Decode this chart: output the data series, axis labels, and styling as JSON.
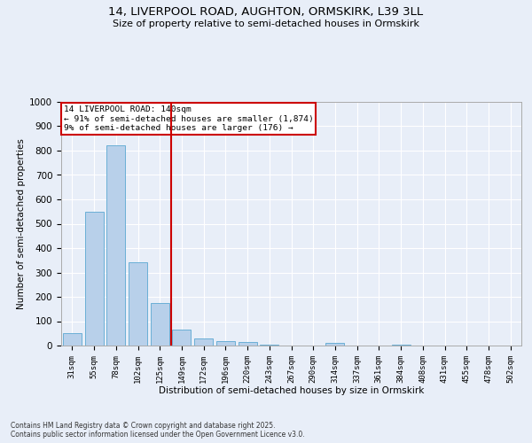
{
  "title1": "14, LIVERPOOL ROAD, AUGHTON, ORMSKIRK, L39 3LL",
  "title2": "Size of property relative to semi-detached houses in Ormskirk",
  "xlabel": "Distribution of semi-detached houses by size in Ormskirk",
  "ylabel": "Number of semi-detached properties",
  "categories": [
    "31sqm",
    "55sqm",
    "78sqm",
    "102sqm",
    "125sqm",
    "149sqm",
    "172sqm",
    "196sqm",
    "220sqm",
    "243sqm",
    "267sqm",
    "290sqm",
    "314sqm",
    "337sqm",
    "361sqm",
    "384sqm",
    "408sqm",
    "431sqm",
    "455sqm",
    "478sqm",
    "502sqm"
  ],
  "values": [
    52,
    550,
    820,
    343,
    175,
    65,
    30,
    17,
    13,
    5,
    0,
    0,
    10,
    0,
    0,
    5,
    0,
    0,
    0,
    0,
    0
  ],
  "bar_color": "#b8d0ea",
  "bar_edge_color": "#6aafd6",
  "vline_x_idx": 5,
  "vline_color": "#cc0000",
  "annotation_title": "14 LIVERPOOL ROAD: 140sqm",
  "annotation_line1": "← 91% of semi-detached houses are smaller (1,874)",
  "annotation_line2": "9% of semi-detached houses are larger (176) →",
  "annotation_box_color": "#cc0000",
  "ylim": [
    0,
    1000
  ],
  "yticks": [
    0,
    100,
    200,
    300,
    400,
    500,
    600,
    700,
    800,
    900,
    1000
  ],
  "bg_color": "#e8eef8",
  "plot_bg_color": "#e8eef8",
  "footer1": "Contains HM Land Registry data © Crown copyright and database right 2025.",
  "footer2": "Contains public sector information licensed under the Open Government Licence v3.0."
}
